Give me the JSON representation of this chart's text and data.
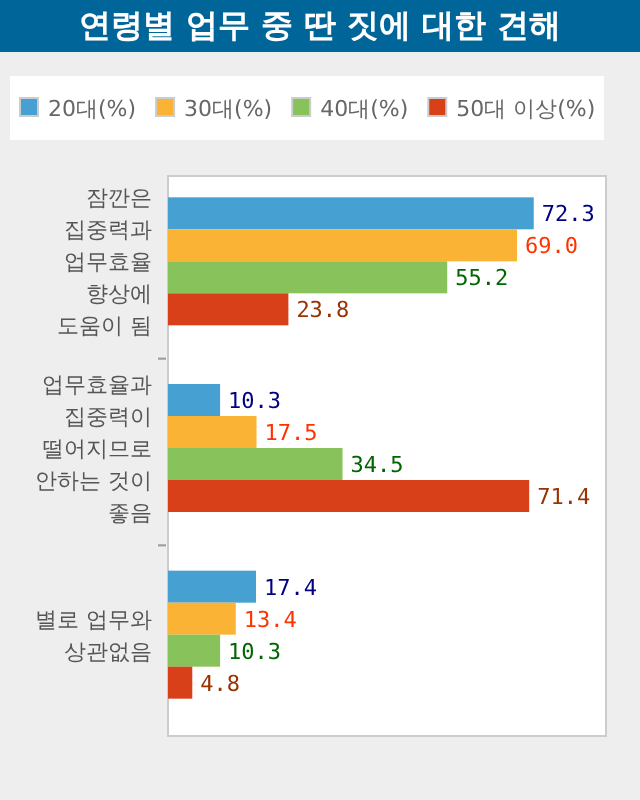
{
  "chart_data": {
    "type": "bar",
    "orientation": "horizontal",
    "title": "연령별 업무 중 딴 짓에 대한 견해",
    "categories": [
      "잠깐은\n집중력과\n업무효율\n향상에\n도움이 됨",
      "업무효율과\n집중력이\n떨어지므로\n안하는 것이\n좋음",
      "별로 업무와\n상관없음"
    ],
    "series": [
      {
        "name": "20대(%)",
        "color": "#46a0d2",
        "values": [
          72.3,
          10.3,
          17.4
        ],
        "value_labels": [
          "72.3",
          "10.3",
          "17.4"
        ]
      },
      {
        "name": "30대(%)",
        "color": "#fbb336",
        "values": [
          69.0,
          17.5,
          13.4
        ],
        "value_labels": [
          "69.0",
          "17.5",
          "13.4"
        ]
      },
      {
        "name": "40대(%)",
        "color": "#88c25a",
        "values": [
          55.2,
          34.5,
          10.3
        ],
        "value_labels": [
          "55.2",
          "34.5",
          "10.3"
        ]
      },
      {
        "name": "50대 이상(%)",
        "color": "#d8401a",
        "values": [
          23.8,
          71.4,
          4.8
        ],
        "value_labels": [
          "23.8",
          "71.4",
          "4.8"
        ]
      }
    ],
    "legend": "top",
    "grid": false
  }
}
